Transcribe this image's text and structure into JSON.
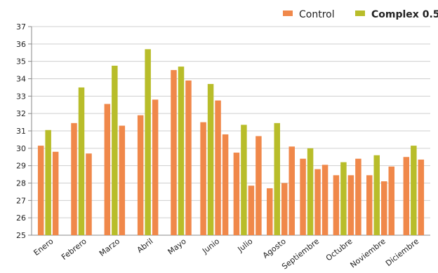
{
  "chart_data": {
    "type": "bar",
    "title": "",
    "xlabel": "",
    "ylabel": "",
    "ylim": [
      25,
      37
    ],
    "yticks": [
      "25",
      "26",
      "27",
      "28",
      "29",
      "30",
      "31",
      "32",
      "33",
      "34",
      "35",
      "36",
      "37"
    ],
    "categories": [
      "Enero",
      "Febrero",
      "Marzo",
      "Abril",
      "Mayo",
      "Junio",
      "Julio",
      "Agosto",
      "Septiembre",
      "Octubre",
      "Noviembre",
      "Diciembre"
    ],
    "grid": true,
    "legend_position": "top-right",
    "series": [
      {
        "name": "Control",
        "color": "#F0884A",
        "values": [
          30.15,
          31.45,
          32.55,
          31.9,
          34.5,
          31.5,
          29.75,
          27.7,
          29.4,
          28.45,
          28.45,
          29.5
        ]
      },
      {
        "name": "Complex 0.5",
        "color": "#B8BD2A",
        "values": [
          31.05,
          33.5,
          34.75,
          35.7,
          34.7,
          33.7,
          31.35,
          31.45,
          30.0,
          29.2,
          29.6,
          30.15
        ]
      },
      {
        "name": "",
        "color": "#F0884A",
        "values": [
          29.8,
          29.7,
          31.3,
          32.8,
          33.9,
          32.75,
          27.85,
          28.0,
          28.8,
          28.45,
          28.1,
          29.35
        ]
      },
      {
        "name": "",
        "color": "#F0884A",
        "values": [
          null,
          null,
          null,
          null,
          null,
          30.8,
          30.7,
          30.1,
          29.05,
          29.4,
          28.95,
          null
        ]
      }
    ]
  }
}
